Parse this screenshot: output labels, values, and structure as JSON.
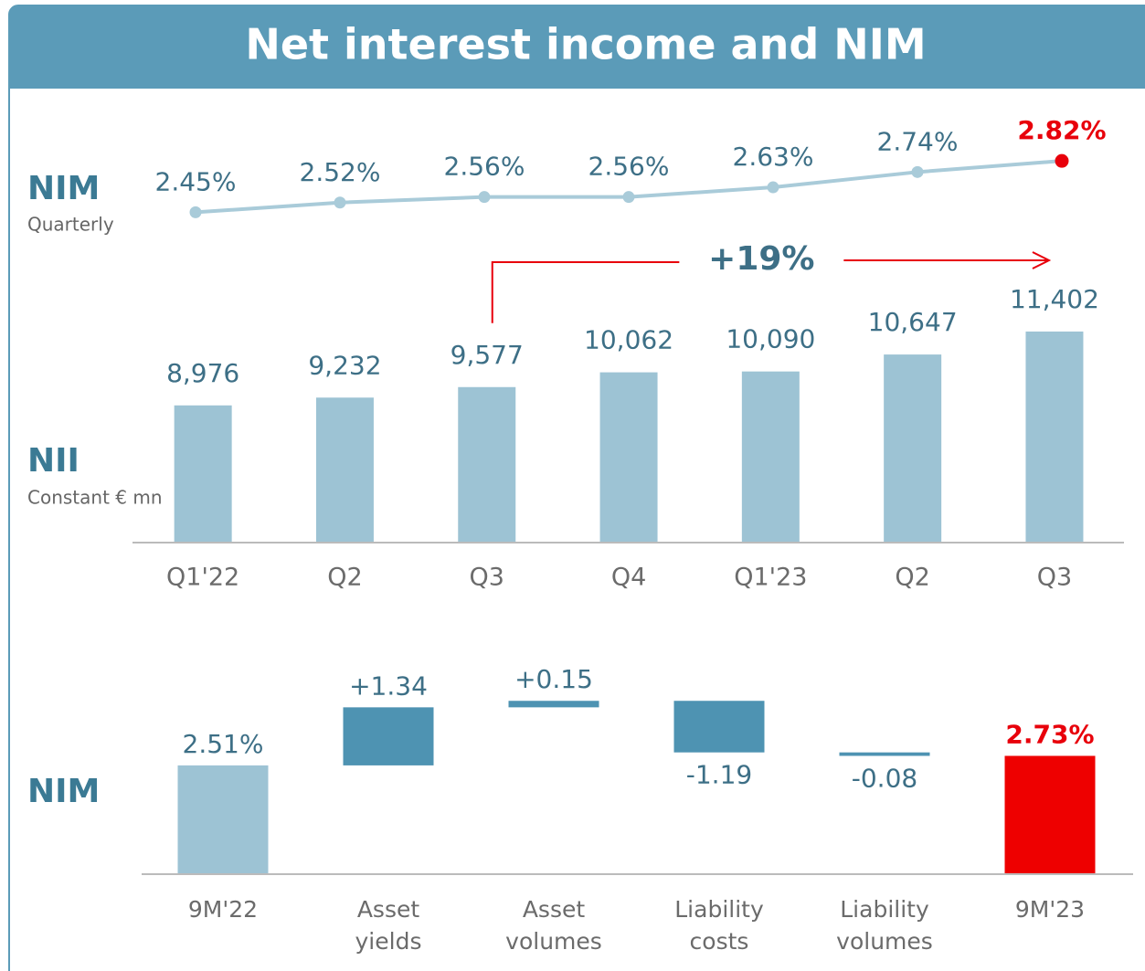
{
  "title": "Net interest income and NIM",
  "chart_data": [
    {
      "type": "line",
      "label": "NIM",
      "sublabel": "Quarterly",
      "categories": [
        "Q1'22",
        "Q2",
        "Q3",
        "Q4",
        "Q1'23",
        "Q2",
        "Q3"
      ],
      "values": [
        2.45,
        2.52,
        2.56,
        2.56,
        2.63,
        2.74,
        2.82
      ],
      "value_labels": [
        "2.45%",
        "2.52%",
        "2.56%",
        "2.56%",
        "2.63%",
        "2.74%",
        "2.82%"
      ],
      "color": "#a9cbd9",
      "highlight_color": "#e8000b",
      "ylim": [
        2.4,
        2.9
      ]
    },
    {
      "type": "bar",
      "label": "NII",
      "sublabel": "Constant € mn",
      "categories": [
        "Q1'22",
        "Q2",
        "Q3",
        "Q4",
        "Q1'23",
        "Q2",
        "Q3"
      ],
      "values": [
        8976,
        9232,
        9577,
        10062,
        10090,
        10647,
        11402
      ],
      "value_labels": [
        "8,976",
        "9,232",
        "9,577",
        "10,062",
        "10,090",
        "10,647",
        "11,402"
      ],
      "color": "#9dc3d4",
      "ylim": [
        4500,
        12000
      ],
      "annotation": "+19%",
      "annotation_color": "#e8000b"
    },
    {
      "type": "waterfall",
      "label": "NIM",
      "categories": [
        "9M'22",
        "Asset yields",
        "Asset volumes",
        "Liability costs",
        "Liability volumes",
        "9M'23"
      ],
      "values": [
        2.51,
        1.34,
        0.15,
        -1.19,
        -0.08,
        2.73
      ],
      "value_labels": [
        "2.51%",
        "+1.34",
        "+0.15",
        "-1.19",
        "-0.08",
        "2.73%"
      ],
      "colors": [
        "#9dc3d4",
        "#4e93b2",
        "#4e93b2",
        "#4e93b2",
        "#4e93b2",
        "#ee0000"
      ],
      "highlight_color": "#e8000b",
      "ylim": [
        0,
        4.3
      ]
    }
  ]
}
